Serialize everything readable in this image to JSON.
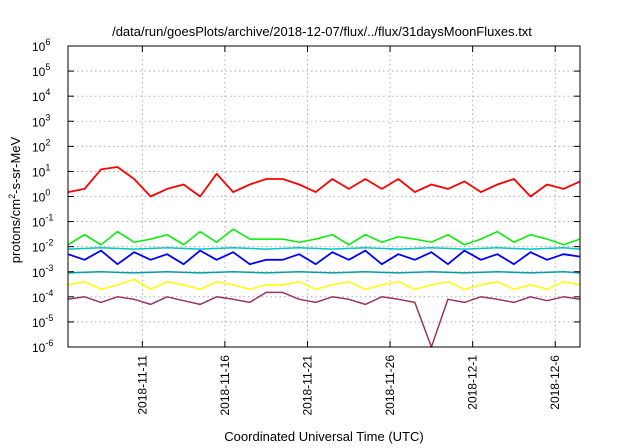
{
  "chart_data": {
    "type": "line",
    "title": "/data/run/goesPlots/archive/2018-12-07/flux/../flux/31daysMoonFluxes.txt",
    "xlabel": "Coordinated Universal Time (UTC)",
    "ylabel": "protons/cm²-s-sr-MeV",
    "ylabel_parts": {
      "a": "protons/cm",
      "sup": "2",
      "b": "-s-sr-MeV"
    },
    "y_scale": "log",
    "ylim": [
      1e-06,
      1000000.0
    ],
    "y_ticks": [
      {
        "base": "10",
        "exp": "-6",
        "value": 1e-06
      },
      {
        "base": "10",
        "exp": "-5",
        "value": 1e-05
      },
      {
        "base": "10",
        "exp": "-4",
        "value": 0.0001
      },
      {
        "base": "10",
        "exp": "-3",
        "value": 0.001
      },
      {
        "base": "10",
        "exp": "-2",
        "value": 0.01
      },
      {
        "base": "10",
        "exp": "-1",
        "value": 0.1
      },
      {
        "base": "10",
        "exp": "0",
        "value": 1
      },
      {
        "base": "10",
        "exp": "1",
        "value": 10
      },
      {
        "base": "10",
        "exp": "2",
        "value": 100
      },
      {
        "base": "10",
        "exp": "3",
        "value": 1000
      },
      {
        "base": "10",
        "exp": "4",
        "value": 10000
      },
      {
        "base": "10",
        "exp": "5",
        "value": 100000
      },
      {
        "base": "10",
        "exp": "6",
        "value": 1000000
      }
    ],
    "xlim": [
      "2018-11-06T12:00",
      "2018-12-07T12:00"
    ],
    "x_ticks": [
      {
        "label": "2018-11-11",
        "date": "2018-11-11"
      },
      {
        "label": "2018-11-16",
        "date": "2018-11-16"
      },
      {
        "label": "2018-11-21",
        "date": "2018-11-21"
      },
      {
        "label": "2018-11-26",
        "date": "2018-11-26"
      },
      {
        "label": "2018-12-1",
        "date": "2018-12-01"
      },
      {
        "label": "2018-12-6",
        "date": "2018-12-06"
      }
    ],
    "grid": true,
    "legend": "none",
    "data_gap": [
      "2018-11-18T12:00",
      "2018-11-19T12:00"
    ],
    "series": [
      {
        "color": "#ff0000",
        "x": [
          "2018-11-06T12:00",
          "2018-11-07T12:00",
          "2018-11-08T12:00",
          "2018-11-09T12:00",
          "2018-11-10T12:00",
          "2018-11-11T12:00",
          "2018-11-12T12:00",
          "2018-11-13T12:00",
          "2018-11-14T12:00",
          "2018-11-15T12:00",
          "2018-11-16T12:00",
          "2018-11-17T12:00",
          "2018-11-18T12:00",
          "2018-11-19T12:00",
          "2018-11-20T12:00",
          "2018-11-21T12:00",
          "2018-11-22T12:00",
          "2018-11-23T12:00",
          "2018-11-24T12:00",
          "2018-11-25T12:00",
          "2018-11-26T12:00",
          "2018-11-27T12:00",
          "2018-11-28T12:00",
          "2018-11-29T12:00",
          "2018-11-30T12:00",
          "2018-12-01T12:00",
          "2018-12-02T12:00",
          "2018-12-03T12:00",
          "2018-12-04T12:00",
          "2018-12-05T12:00",
          "2018-12-06T12:00",
          "2018-12-07T12:00"
        ],
        "y": [
          1.5,
          2,
          12,
          15,
          5,
          1,
          2,
          3,
          1,
          8,
          1.5,
          3,
          5,
          5,
          3,
          1.5,
          5,
          2,
          5,
          2,
          5,
          1.5,
          3,
          2,
          4,
          1.5,
          3,
          5,
          1,
          3,
          2,
          4
        ]
      },
      {
        "color": "#00ee00",
        "x": [
          "2018-11-06T12:00",
          "2018-11-07T12:00",
          "2018-11-08T12:00",
          "2018-11-09T12:00",
          "2018-11-10T12:00",
          "2018-11-11T12:00",
          "2018-11-12T12:00",
          "2018-11-13T12:00",
          "2018-11-14T12:00",
          "2018-11-15T12:00",
          "2018-11-16T12:00",
          "2018-11-17T12:00",
          "2018-11-18T12:00",
          "2018-11-19T12:00",
          "2018-11-20T12:00",
          "2018-11-21T12:00",
          "2018-11-22T12:00",
          "2018-11-23T12:00",
          "2018-11-24T12:00",
          "2018-11-25T12:00",
          "2018-11-26T12:00",
          "2018-11-27T12:00",
          "2018-11-28T12:00",
          "2018-11-29T12:00",
          "2018-11-30T12:00",
          "2018-12-01T12:00",
          "2018-12-02T12:00",
          "2018-12-03T12:00",
          "2018-12-04T12:00",
          "2018-12-05T12:00",
          "2018-12-06T12:00",
          "2018-12-07T12:00"
        ],
        "y": [
          0.012,
          0.03,
          0.012,
          0.04,
          0.015,
          0.02,
          0.03,
          0.012,
          0.04,
          0.015,
          0.05,
          0.02,
          0.02,
          0.02,
          0.015,
          0.02,
          0.03,
          0.012,
          0.03,
          0.015,
          0.025,
          0.02,
          0.015,
          0.03,
          0.012,
          0.02,
          0.04,
          0.015,
          0.03,
          0.02,
          0.012,
          0.02
        ]
      },
      {
        "color": "#0000ff",
        "x": [
          "2018-11-06T12:00",
          "2018-11-07T12:00",
          "2018-11-08T12:00",
          "2018-11-09T12:00",
          "2018-11-10T12:00",
          "2018-11-11T12:00",
          "2018-11-12T12:00",
          "2018-11-13T12:00",
          "2018-11-14T12:00",
          "2018-11-15T12:00",
          "2018-11-16T12:00",
          "2018-11-17T12:00",
          "2018-11-18T12:00",
          "2018-11-19T12:00",
          "2018-11-20T12:00",
          "2018-11-21T12:00",
          "2018-11-22T12:00",
          "2018-11-23T12:00",
          "2018-11-24T12:00",
          "2018-11-25T12:00",
          "2018-11-26T12:00",
          "2018-11-27T12:00",
          "2018-11-28T12:00",
          "2018-11-29T12:00",
          "2018-11-30T12:00",
          "2018-12-01T12:00",
          "2018-12-02T12:00",
          "2018-12-03T12:00",
          "2018-12-04T12:00",
          "2018-12-05T12:00",
          "2018-12-06T12:00",
          "2018-12-07T12:00"
        ],
        "y": [
          0.005,
          0.003,
          0.007,
          0.002,
          0.006,
          0.003,
          0.005,
          0.002,
          0.007,
          0.003,
          0.006,
          0.002,
          0.003,
          0.003,
          0.005,
          0.002,
          0.006,
          0.003,
          0.007,
          0.002,
          0.005,
          0.003,
          0.006,
          0.002,
          0.007,
          0.003,
          0.005,
          0.002,
          0.006,
          0.003,
          0.005,
          0.004
        ]
      },
      {
        "color": "#00c8c8",
        "x": [
          "2018-11-06T12:00",
          "2018-11-08T12:00",
          "2018-11-10T12:00",
          "2018-11-12T12:00",
          "2018-11-14T12:00",
          "2018-11-16T12:00",
          "2018-11-18T12:00",
          "2018-11-20T12:00",
          "2018-11-22T12:00",
          "2018-11-24T12:00",
          "2018-11-26T12:00",
          "2018-11-28T12:00",
          "2018-11-30T12:00",
          "2018-12-02T12:00",
          "2018-12-04T12:00",
          "2018-12-06T12:00",
          "2018-12-07T12:00"
        ],
        "y": [
          0.008,
          0.009,
          0.008,
          0.009,
          0.008,
          0.009,
          0.008,
          0.009,
          0.008,
          0.009,
          0.008,
          0.009,
          0.008,
          0.009,
          0.008,
          0.009,
          0.008
        ]
      },
      {
        "color": "#00a0a0",
        "x": [
          "2018-11-06T12:00",
          "2018-11-08T12:00",
          "2018-11-10T12:00",
          "2018-11-12T12:00",
          "2018-11-14T12:00",
          "2018-11-16T12:00",
          "2018-11-18T12:00",
          "2018-11-20T12:00",
          "2018-11-22T12:00",
          "2018-11-24T12:00",
          "2018-11-26T12:00",
          "2018-11-28T12:00",
          "2018-11-30T12:00",
          "2018-12-02T12:00",
          "2018-12-04T12:00",
          "2018-12-06T12:00",
          "2018-12-07T12:00"
        ],
        "y": [
          0.0009,
          0.001,
          0.0009,
          0.001,
          0.0009,
          0.001,
          0.0009,
          0.001,
          0.0009,
          0.001,
          0.0009,
          0.001,
          0.0009,
          0.001,
          0.0009,
          0.001,
          0.0009
        ]
      },
      {
        "color": "#ffff00",
        "x": [
          "2018-11-06T12:00",
          "2018-11-07T12:00",
          "2018-11-08T12:00",
          "2018-11-09T12:00",
          "2018-11-10T12:00",
          "2018-11-11T12:00",
          "2018-11-12T12:00",
          "2018-11-13T12:00",
          "2018-11-14T12:00",
          "2018-11-15T12:00",
          "2018-11-16T12:00",
          "2018-11-17T12:00",
          "2018-11-18T12:00",
          "2018-11-19T12:00",
          "2018-11-20T12:00",
          "2018-11-21T12:00",
          "2018-11-22T12:00",
          "2018-11-23T12:00",
          "2018-11-24T12:00",
          "2018-11-25T12:00",
          "2018-11-26T12:00",
          "2018-11-27T12:00",
          "2018-11-28T12:00",
          "2018-11-29T12:00",
          "2018-11-30T12:00",
          "2018-12-01T12:00",
          "2018-12-02T12:00",
          "2018-12-03T12:00",
          "2018-12-04T12:00",
          "2018-12-05T12:00",
          "2018-12-06T12:00",
          "2018-12-07T12:00"
        ],
        "y": [
          0.0003,
          0.0004,
          0.0002,
          0.0003,
          0.0005,
          0.0002,
          0.0004,
          0.0003,
          0.0002,
          0.0004,
          0.0003,
          0.0002,
          0.0003,
          0.0003,
          0.0004,
          0.0002,
          0.0003,
          0.0004,
          0.0002,
          0.0003,
          0.0004,
          0.0002,
          0.0003,
          0.0004,
          0.0002,
          0.0003,
          0.0004,
          0.0002,
          0.0003,
          0.0002,
          0.0004,
          0.0003
        ]
      },
      {
        "color": "#993366",
        "x": [
          "2018-11-06T12:00",
          "2018-11-07T12:00",
          "2018-11-08T12:00",
          "2018-11-09T12:00",
          "2018-11-10T12:00",
          "2018-11-11T12:00",
          "2018-11-12T12:00",
          "2018-11-13T12:00",
          "2018-11-14T12:00",
          "2018-11-15T12:00",
          "2018-11-16T12:00",
          "2018-11-17T12:00",
          "2018-11-18T12:00",
          "2018-11-19T12:00",
          "2018-11-20T12:00",
          "2018-11-21T12:00",
          "2018-11-22T12:00",
          "2018-11-23T12:00",
          "2018-11-24T12:00",
          "2018-11-25T12:00",
          "2018-11-26T12:00",
          "2018-11-27T12:00",
          "2018-11-28T12:00",
          "2018-11-29T12:00",
          "2018-11-30T12:00",
          "2018-12-01T12:00",
          "2018-12-02T12:00",
          "2018-12-03T12:00",
          "2018-12-04T12:00",
          "2018-12-05T12:00",
          "2018-12-06T12:00",
          "2018-12-07T12:00"
        ],
        "y": [
          8e-05,
          0.0001,
          6e-05,
          0.0001,
          8e-05,
          5e-05,
          0.0001,
          7e-05,
          5e-05,
          0.0001,
          8e-05,
          6e-05,
          0.00015,
          0.00015,
          8e-05,
          6e-05,
          0.0001,
          8e-05,
          5e-05,
          0.0001,
          8e-05,
          6e-05,
          1e-06,
          8e-05,
          6e-05,
          0.0001,
          8e-05,
          6e-05,
          0.0001,
          7e-05,
          0.0001,
          8e-05
        ]
      }
    ]
  }
}
